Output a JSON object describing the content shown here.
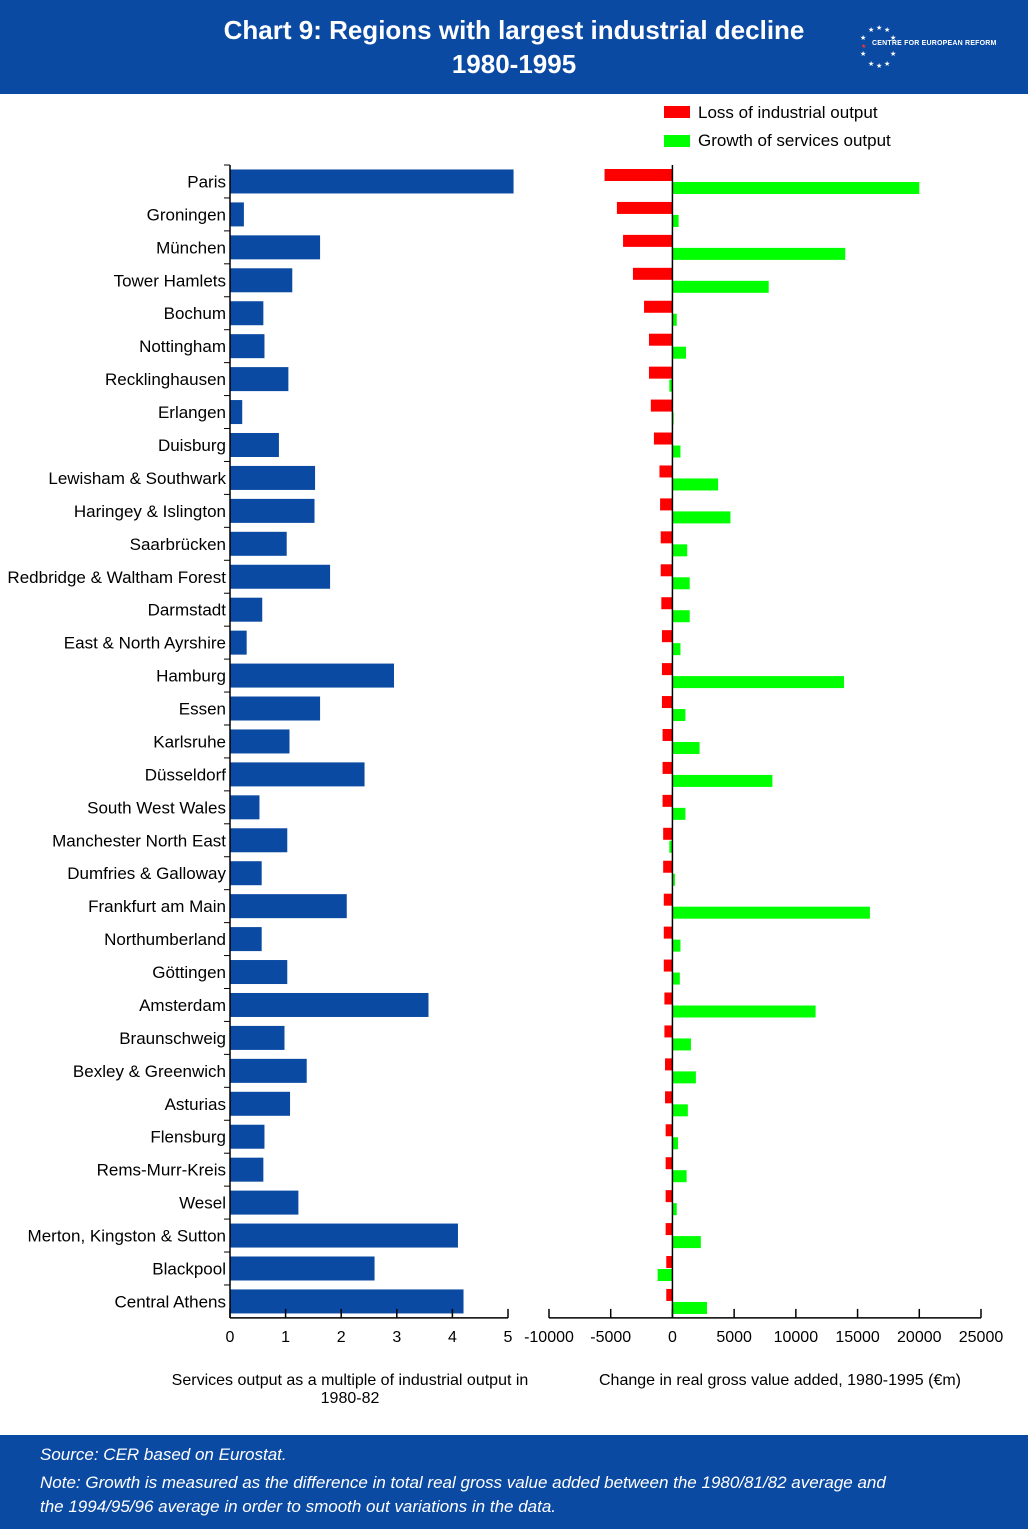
{
  "header": {
    "title_line1": "Chart 9:  Regions with largest industrial decline",
    "title_line2": "1980-1995",
    "logo_text": "CENTRE FOR EUROPEAN REFORM"
  },
  "legend": {
    "loss_label": "Loss of industrial output",
    "growth_label": "Growth of services output"
  },
  "colors": {
    "header_bg": "#0b4aa2",
    "bar_blue": "#0b4aa2",
    "loss_red": "#ff0000",
    "growth_green": "#00ff00"
  },
  "chart_data": [
    {
      "type": "bar",
      "orientation": "horizontal",
      "categories": [
        "Paris",
        "Groningen",
        "München",
        "Tower Hamlets",
        "Bochum",
        "Nottingham",
        "Recklinghausen",
        "Erlangen",
        "Duisburg",
        "Lewisham & Southwark",
        "Haringey & Islington",
        "Saarbrücken",
        "Redbridge & Waltham Forest",
        "Darmstadt",
        "East & North Ayrshire",
        "Hamburg",
        "Essen",
        "Karlsruhe",
        "Düsseldorf",
        "South West Wales",
        "Manchester North East",
        "Dumfries & Galloway",
        "Frankfurt am Main",
        "Northumberland",
        "Göttingen",
        "Amsterdam",
        "Braunschweig",
        "Bexley & Greenwich",
        "Asturias",
        "Flensburg",
        "Rems-Murr-Kreis",
        "Wesel",
        "Merton, Kingston & Sutton",
        "Blackpool",
        "Central Athens"
      ],
      "values": [
        5.1,
        0.25,
        1.62,
        1.12,
        0.6,
        0.62,
        1.05,
        0.22,
        0.88,
        1.53,
        1.52,
        1.02,
        1.8,
        0.58,
        0.3,
        2.95,
        1.62,
        1.07,
        2.42,
        0.53,
        1.03,
        0.57,
        2.1,
        0.57,
        1.03,
        3.57,
        0.98,
        1.38,
        1.08,
        0.62,
        0.6,
        1.23,
        4.1,
        2.6,
        4.2
      ],
      "xlabel": "Services output as a multiple of industrial output in 1980-82",
      "xlim": [
        0,
        5
      ],
      "xticks": [
        "0",
        "1",
        "2",
        "3",
        "4",
        "5"
      ],
      "ylabel": "",
      "title": ""
    },
    {
      "type": "bar",
      "orientation": "horizontal",
      "categories": [
        "Paris",
        "Groningen",
        "München",
        "Tower Hamlets",
        "Bochum",
        "Nottingham",
        "Recklinghausen",
        "Erlangen",
        "Duisburg",
        "Lewisham & Southwark",
        "Haringey & Islington",
        "Saarbrücken",
        "Redbridge & Waltham Forest",
        "Darmstadt",
        "East & North Ayrshire",
        "Hamburg",
        "Essen",
        "Karlsruhe",
        "Düsseldorf",
        "South West Wales",
        "Manchester North East",
        "Dumfries & Galloway",
        "Frankfurt am Main",
        "Northumberland",
        "Göttingen",
        "Amsterdam",
        "Braunschweig",
        "Bexley & Greenwich",
        "Asturias",
        "Flensburg",
        "Rems-Murr-Kreis",
        "Wesel",
        "Merton, Kingston & Sutton",
        "Blackpool",
        "Central Athens"
      ],
      "series": [
        {
          "name": "Loss of industrial output",
          "color": "#ff0000",
          "values": [
            -5500,
            -4500,
            -4000,
            -3200,
            -2300,
            -1900,
            -1900,
            -1750,
            -1500,
            -1050,
            -1000,
            -950,
            -950,
            -900,
            -850,
            -850,
            -850,
            -800,
            -800,
            -800,
            -750,
            -750,
            -700,
            -700,
            -700,
            -650,
            -650,
            -600,
            -600,
            -550,
            -550,
            -550,
            -550,
            -500,
            -500
          ]
        },
        {
          "name": "Growth of services output",
          "color": "#00ff00",
          "values": [
            20000,
            500,
            14000,
            7800,
            350,
            1100,
            -250,
            100,
            650,
            3700,
            4700,
            1200,
            1400,
            1400,
            650,
            13900,
            1050,
            2200,
            8100,
            1050,
            -250,
            200,
            16000,
            650,
            600,
            11600,
            1500,
            1900,
            1250,
            450,
            1150,
            350,
            2300,
            -1200,
            2800
          ]
        }
      ],
      "xlabel": "Change in real gross value added, 1980-1995 (€m)",
      "xlim": [
        -10000,
        25000
      ],
      "xticks": [
        "-10000",
        "-5000",
        "0",
        "5000",
        "10000",
        "15000",
        "20000",
        "25000"
      ],
      "ylabel": "",
      "title": ""
    }
  ],
  "footer": {
    "source": "Source: CER based on Eurostat.",
    "note_line1": "Note:  Growth is measured as the difference in total real gross value added between the 1980/81/82 average and",
    "note_line2": "the 1994/95/96 average in order to smooth out variations in the data."
  }
}
